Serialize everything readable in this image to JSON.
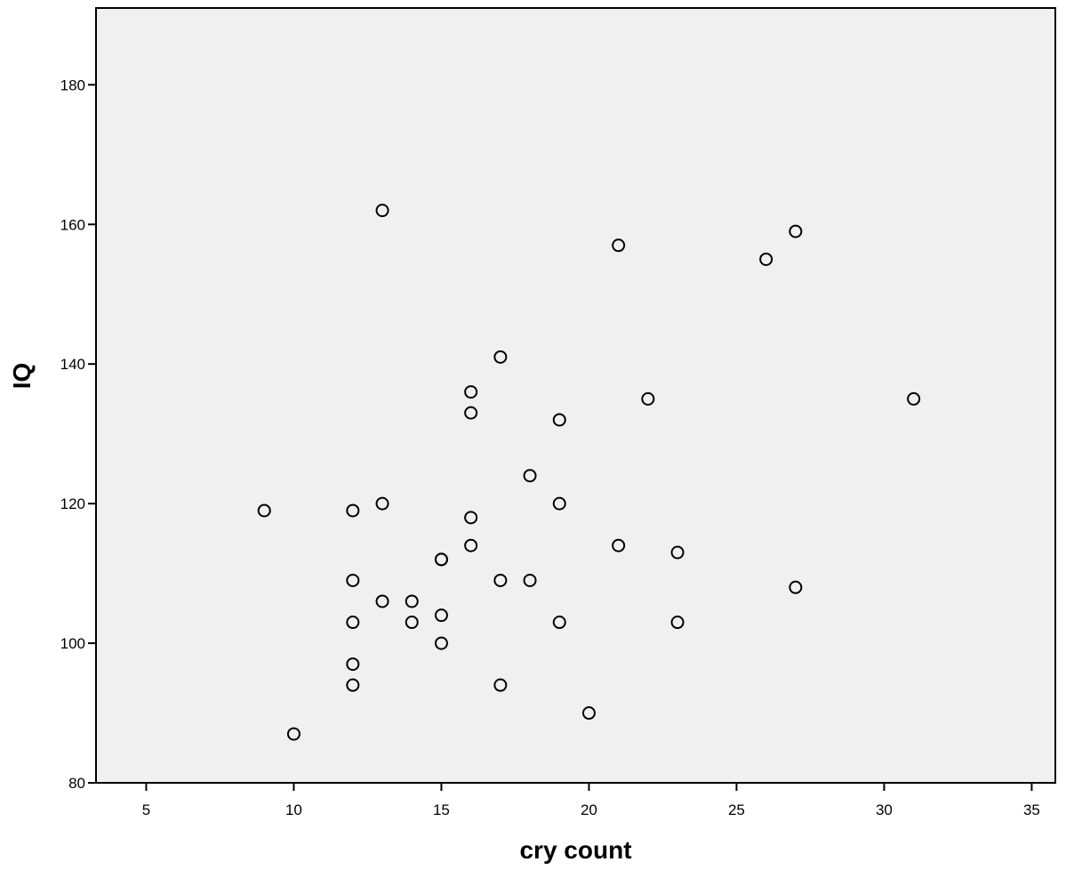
{
  "chart_data": {
    "type": "scatter",
    "title": "",
    "xlabel": "cry count",
    "ylabel": "IQ",
    "xlim": [
      3.3,
      35.8
    ],
    "ylim": [
      80,
      191
    ],
    "x_ticks": [
      5,
      10,
      15,
      20,
      25,
      30,
      35
    ],
    "y_ticks": [
      80,
      100,
      120,
      140,
      160,
      180
    ],
    "grid": false,
    "legend": "none",
    "plot_background": "#f0f0f0",
    "marker_color": "#000000",
    "points": [
      {
        "x": 9,
        "y": 119
      },
      {
        "x": 10,
        "y": 87
      },
      {
        "x": 12,
        "y": 119
      },
      {
        "x": 12,
        "y": 109
      },
      {
        "x": 12,
        "y": 103
      },
      {
        "x": 12,
        "y": 97
      },
      {
        "x": 12,
        "y": 94
      },
      {
        "x": 13,
        "y": 162
      },
      {
        "x": 13,
        "y": 120
      },
      {
        "x": 13,
        "y": 106
      },
      {
        "x": 14,
        "y": 106
      },
      {
        "x": 14,
        "y": 103
      },
      {
        "x": 15,
        "y": 112
      },
      {
        "x": 15,
        "y": 112
      },
      {
        "x": 15,
        "y": 104
      },
      {
        "x": 15,
        "y": 100
      },
      {
        "x": 16,
        "y": 136
      },
      {
        "x": 16,
        "y": 133
      },
      {
        "x": 16,
        "y": 118
      },
      {
        "x": 16,
        "y": 114
      },
      {
        "x": 17,
        "y": 141
      },
      {
        "x": 17,
        "y": 109
      },
      {
        "x": 17,
        "y": 94
      },
      {
        "x": 18,
        "y": 124
      },
      {
        "x": 18,
        "y": 109
      },
      {
        "x": 19,
        "y": 132
      },
      {
        "x": 19,
        "y": 120
      },
      {
        "x": 19,
        "y": 103
      },
      {
        "x": 20,
        "y": 90
      },
      {
        "x": 21,
        "y": 157
      },
      {
        "x": 21,
        "y": 114
      },
      {
        "x": 22,
        "y": 135
      },
      {
        "x": 23,
        "y": 113
      },
      {
        "x": 23,
        "y": 103
      },
      {
        "x": 26,
        "y": 155
      },
      {
        "x": 27,
        "y": 159
      },
      {
        "x": 27,
        "y": 108
      },
      {
        "x": 31,
        "y": 135
      }
    ]
  }
}
